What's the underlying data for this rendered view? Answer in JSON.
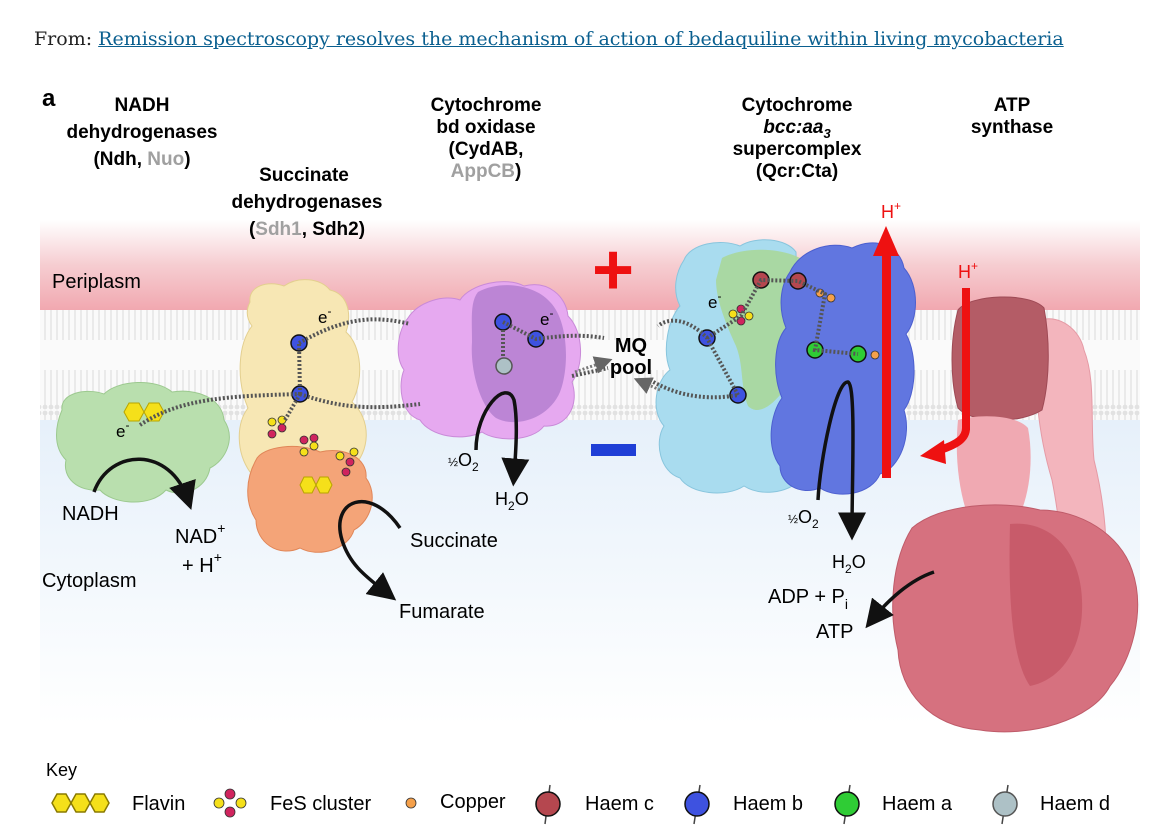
{
  "header": {
    "prefix": "From:",
    "link_text": "Remission spectroscopy resolves the mechanism of action of bedaquiline within living mycobacteria"
  },
  "figure": {
    "panel_label": "a",
    "compartments": {
      "periplasm": "Periplasm",
      "cytoplasm": "Cytoplasm"
    },
    "complexes": {
      "ndh": {
        "line1": "NADH",
        "line2": "dehydrogenases",
        "open": "(",
        "name_a": "Ndh",
        "sep": ", ",
        "name_b": "Nuo",
        "close": ")"
      },
      "sdh": {
        "line1": "Succinate",
        "line2": "dehydrogenases",
        "open": "(",
        "name_a": "Sdh1",
        "sep": ", ",
        "name_b": "Sdh2",
        "close": ")"
      },
      "cyd": {
        "line1": "Cytochrome",
        "line2": "bd oxidase",
        "line3": "(CydAB,",
        "name_b": "AppCB",
        "close": ")"
      },
      "qcr": {
        "line1": "Cytochrome",
        "line2a": "bcc:aa",
        "line2sub": "3",
        "line3": "supercomplex",
        "line4": "(Qcr:Cta)"
      },
      "atp": {
        "line1": "ATP",
        "line2": "synthase"
      }
    },
    "labels": {
      "electron": "e",
      "electron_sup": "-",
      "mq_line1": "MQ",
      "mq_line2": "pool",
      "plus": "+",
      "proton": "H",
      "proton_sup": "+",
      "nadh": "NADH",
      "nad_line1": "NAD",
      "nad_sup": "+",
      "nad_line2": "+ H",
      "nad_line2_sup": "+",
      "succinate": "Succinate",
      "fumarate": "Fumarate",
      "half": "½",
      "o2": "O",
      "o2_sub": "2",
      "water": "H",
      "water_sub": "2",
      "water_o": "O",
      "adp": "ADP + P",
      "adp_sub": "i",
      "atp": "ATP"
    },
    "key": {
      "title": "Key",
      "flavin": "Flavin",
      "fes": "FeS cluster",
      "copper": "Copper",
      "haem_c": "Haem c",
      "haem_b": "Haem b",
      "haem_a": "Haem a",
      "haem_d": "Haem d"
    },
    "colors": {
      "periplasm": "#f2b6bc",
      "cytoplasm": "#eef5fc",
      "ndh": "#b9dfae",
      "sdh_top": "#f7e7b4",
      "sdh_bottom": "#f4a478",
      "cyd": "#c786d9",
      "qcr_light": "#a9dcef",
      "qcr_dark": "#6176e0",
      "qcr_green": "#a9d79a",
      "atp": "#d6717f",
      "proton_arrow": "#ee1111",
      "grey_name": "#a0a0a0",
      "flavin": "#f5e01a",
      "fes_red": "#d0245e",
      "copper": "#f5a04a",
      "haem_c": "#b5474f",
      "haem_b": "#3e52e0",
      "haem_a": "#2fcc35",
      "haem_d": "#adc1c6"
    },
    "icons": [
      "flavin-icon",
      "fes-cluster-icon",
      "copper-icon",
      "haem-c-icon",
      "haem-b-icon",
      "haem-a-icon",
      "haem-d-icon"
    ]
  }
}
